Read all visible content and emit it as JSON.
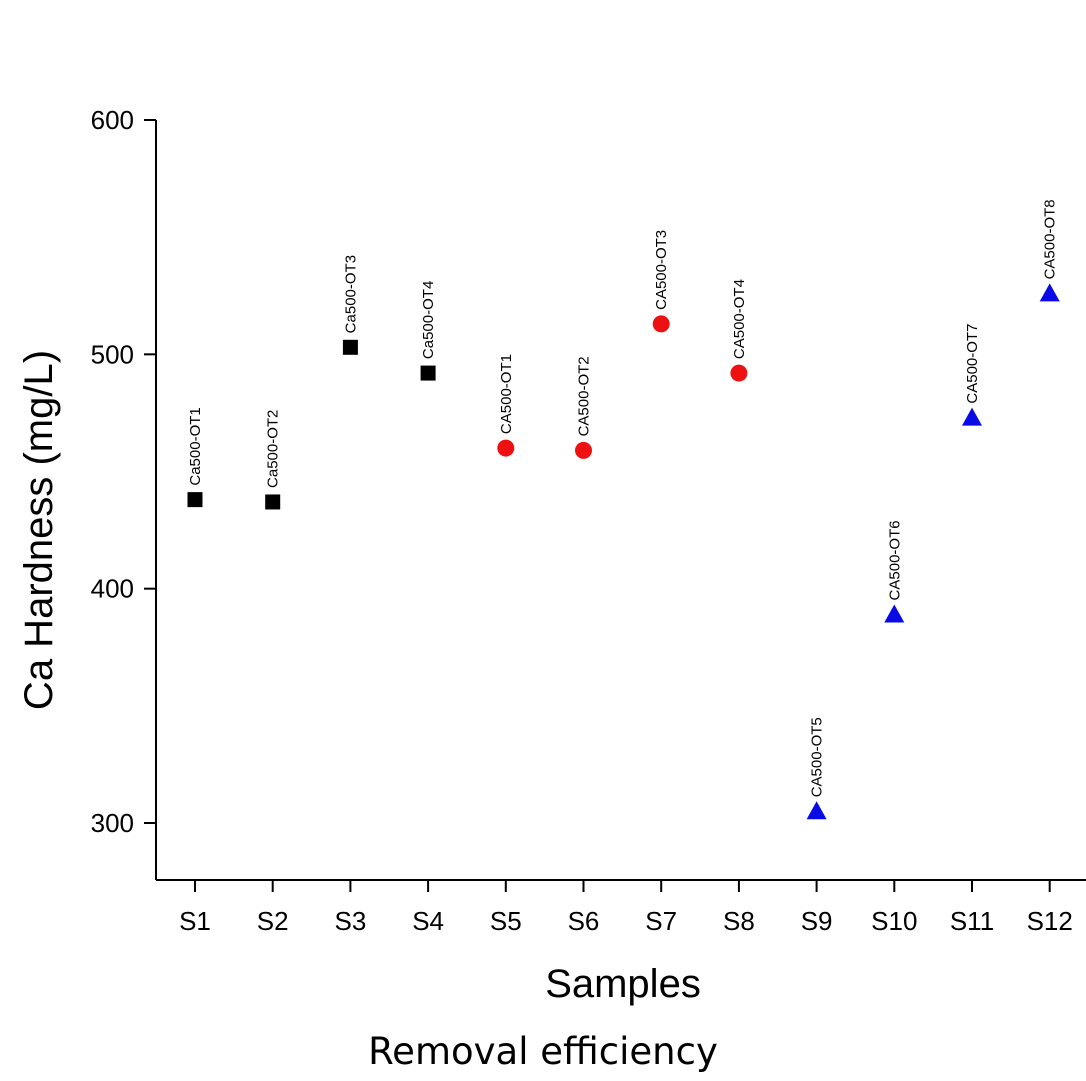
{
  "caption": "Removal efficiency",
  "chart_data": {
    "type": "scatter",
    "title": "",
    "xlabel": "Samples",
    "ylabel": "Ca Hardness (mg/L)",
    "categories": [
      "S1",
      "S2",
      "S3",
      "S4",
      "S5",
      "S6",
      "S7",
      "S8",
      "S9",
      "S10",
      "S11",
      "S12"
    ],
    "ylim": [
      275,
      600
    ],
    "yticks": [
      300,
      400,
      500,
      600
    ],
    "grid": false,
    "series": [
      {
        "color": "#000000",
        "marker": "square",
        "points": [
          {
            "x": "S1",
            "y": 438,
            "label": "Ca500-OT1"
          },
          {
            "x": "S2",
            "y": 437,
            "label": "Ca500-OT2"
          },
          {
            "x": "S3",
            "y": 503,
            "label": "Ca500-OT3"
          },
          {
            "x": "S4",
            "y": 492,
            "label": "Ca500-OT4"
          }
        ]
      },
      {
        "color": "#ee1111",
        "marker": "circle",
        "points": [
          {
            "x": "S5",
            "y": 460,
            "label": "CA500-OT1"
          },
          {
            "x": "S6",
            "y": 459,
            "label": "CA500-OT2"
          },
          {
            "x": "S7",
            "y": 513,
            "label": "CA500-OT3"
          },
          {
            "x": "S8",
            "y": 492,
            "label": "CA500-OT4"
          }
        ]
      },
      {
        "color": "#0a0ae6",
        "marker": "triangle",
        "points": [
          {
            "x": "S9",
            "y": 305,
            "label": "CA500-OT5"
          },
          {
            "x": "S10",
            "y": 389,
            "label": "CA500-OT6"
          },
          {
            "x": "S11",
            "y": 473,
            "label": "CA500-OT7"
          },
          {
            "x": "S12",
            "y": 526,
            "label": "CA500-OT8"
          }
        ]
      }
    ]
  }
}
